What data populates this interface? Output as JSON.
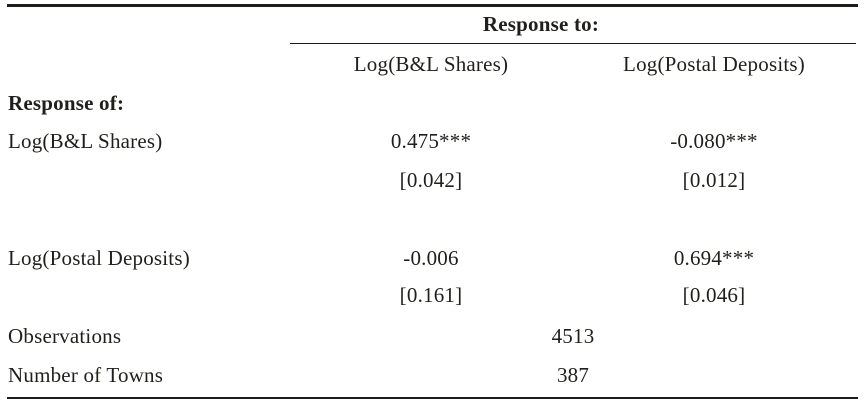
{
  "colors": {
    "background": "#ffffff",
    "text": "#211f1c",
    "rule": "#1e1c1a"
  },
  "table": {
    "span_header": "Response to:",
    "col_headers": [
      "Log(B&L Shares)",
      "Log(Postal Deposits)"
    ],
    "row_group_header": "Response of:",
    "rows": [
      {
        "label": "Log(B&L Shares)",
        "values": [
          "0.475***",
          "-0.080***"
        ],
        "std_errors": [
          "[0.042]",
          "[0.012]"
        ]
      },
      {
        "label": "Log(Postal Deposits)",
        "values": [
          "-0.006",
          "0.694***"
        ],
        "std_errors": [
          "[0.161]",
          "[0.046]"
        ]
      }
    ],
    "summary_rows": [
      {
        "label": "Observations",
        "value": "4513"
      },
      {
        "label": "Number of Towns",
        "value": "387"
      }
    ]
  }
}
